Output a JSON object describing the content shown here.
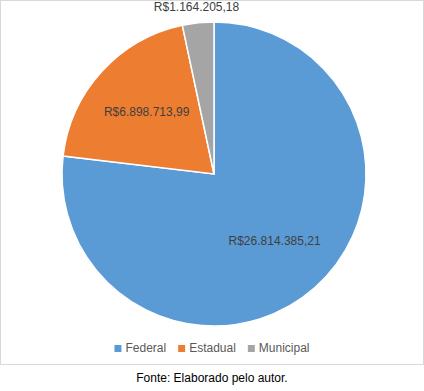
{
  "chart_data": {
    "type": "pie",
    "categories": [
      "Federal",
      "Estadual",
      "Municipal"
    ],
    "values": [
      26814385.21,
      6898713.99,
      1164205.18
    ],
    "value_labels": [
      "R$26.814.385,21",
      "R$6.898.713,99",
      "R$1.164.205,18"
    ],
    "colors": [
      "#5b9bd5",
      "#ed7d31",
      "#a5a5a5"
    ],
    "data_labels": true,
    "legend": "bottom",
    "caption": "Fonte: Elaborado pelo autor."
  }
}
